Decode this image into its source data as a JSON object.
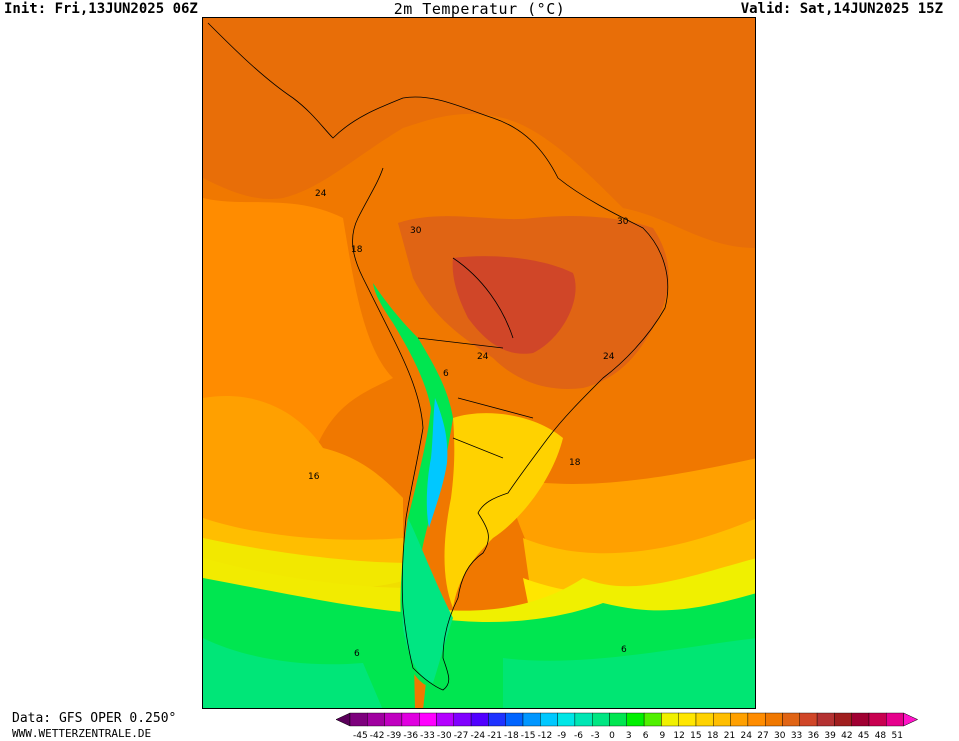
{
  "header": {
    "init": "Init: Fri,13JUN2025 06Z",
    "title": "2m Temperatur (°C)",
    "valid": "Valid: Sat,14JUN2025 15Z"
  },
  "footer": {
    "data_source": "Data: GFS OPER 0.250°",
    "website": "WWW.WETTERZENTRALE.DE"
  },
  "map": {
    "region": "South America",
    "contour_labels": [
      "24",
      "30",
      "18",
      "30",
      "24",
      "24",
      "6",
      "16",
      "18",
      "6",
      "6"
    ],
    "land_fill": "#000000"
  },
  "legend": {
    "ticks": [
      "-45",
      "-42",
      "-39",
      "-36",
      "-33",
      "-30",
      "-27",
      "-24",
      "-21",
      "-18",
      "-15",
      "-12",
      "-9",
      "-6",
      "-3",
      "0",
      "3",
      "6",
      "9",
      "12",
      "15",
      "18",
      "21",
      "24",
      "27",
      "30",
      "33",
      "36",
      "39",
      "42",
      "45",
      "48",
      "51"
    ],
    "colors": [
      "#5a005a",
      "#7d007d",
      "#a000a0",
      "#c000c0",
      "#e000e0",
      "#ff00ff",
      "#b400ff",
      "#8000ff",
      "#5000ff",
      "#1e32ff",
      "#0064ff",
      "#0096ff",
      "#00c8ff",
      "#00e6e6",
      "#00e6b4",
      "#00e682",
      "#00e650",
      "#00f000",
      "#50f000",
      "#f0f000",
      "#ffe600",
      "#ffd200",
      "#ffbe00",
      "#ffa000",
      "#ff8c00",
      "#f07800",
      "#e06414",
      "#d04628",
      "#b43232",
      "#a01e1e",
      "#a00032",
      "#c80050",
      "#e6008c",
      "#ff14c8"
    ]
  }
}
